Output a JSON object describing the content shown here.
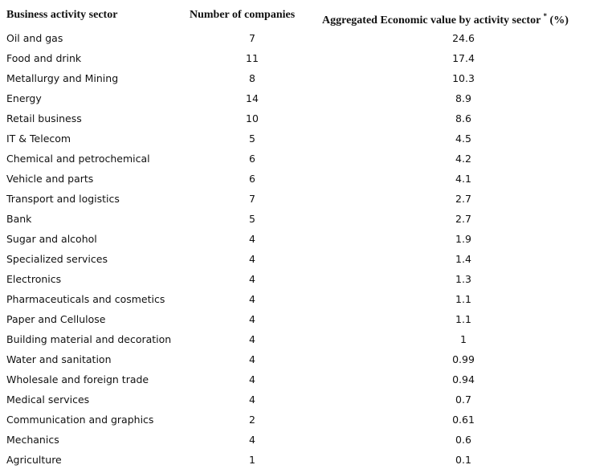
{
  "table": {
    "header": [
      {
        "text": "Business activity sector"
      },
      {
        "text": "Number of companies"
      },
      {
        "text": "Aggregated Economic value by activity sector",
        "sup": "*",
        "suffix": "(%)"
      }
    ],
    "rows": [
      [
        "Oil and gas",
        7,
        24.6
      ],
      [
        "Food and drink",
        11,
        17.4
      ],
      [
        "Metallurgy and Mining",
        8,
        10.3
      ],
      [
        "Energy",
        14,
        8.9
      ],
      [
        "Retail business",
        10,
        8.6
      ],
      [
        "IT & Telecom",
        5,
        4.5
      ],
      [
        "Chemical and petrochemical",
        6,
        4.2
      ],
      [
        "Vehicle and parts",
        6,
        4.1
      ],
      [
        "Transport and logistics",
        7,
        2.7
      ],
      [
        "Bank",
        5,
        2.7
      ],
      [
        "Sugar and alcohol",
        4,
        1.9
      ],
      [
        "Specialized services",
        4,
        1.4
      ],
      [
        "Electronics",
        4,
        1.3
      ],
      [
        "Pharmaceuticals and cosmetics",
        4,
        1.1
      ],
      [
        "Paper and Cellulose",
        4,
        1.1
      ],
      [
        "Building material and decoration",
        4,
        1
      ],
      [
        "Water and sanitation",
        4,
        0.99
      ],
      [
        "Wholesale and foreign trade",
        4,
        0.94
      ],
      [
        "Medical services",
        4,
        0.7
      ],
      [
        "Communication and graphics",
        2,
        0.61
      ],
      [
        "Mechanics",
        4,
        0.6
      ],
      [
        "Agriculture",
        1,
        0.1
      ]
    ]
  }
}
